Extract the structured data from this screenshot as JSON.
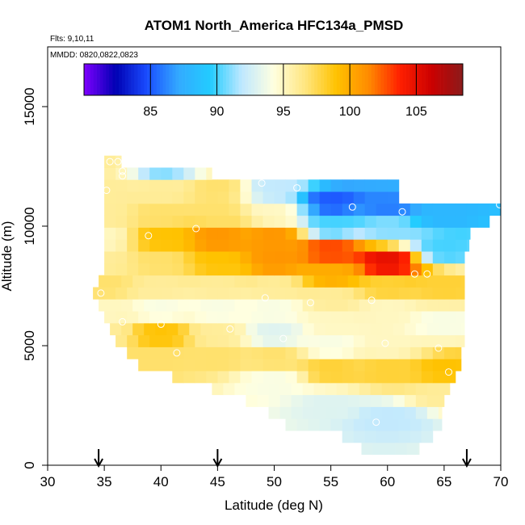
{
  "chart_data": {
    "type": "heatmap",
    "title": "ATOM1 North_America HFC134a_PMSD",
    "flights_label": "Flts: 9,10,11",
    "dates_label": "MMDD: 0820,0822,0823",
    "xlabel": "Latitude (deg N)",
    "ylabel": "Altitude (m)",
    "xlim": [
      30,
      70
    ],
    "ylim": [
      0,
      17500
    ],
    "x_ticks": [
      30,
      35,
      40,
      45,
      50,
      55,
      60,
      65,
      70
    ],
    "y_ticks": [
      0,
      5000,
      10000,
      15000
    ],
    "x_tick_labels": [
      "30",
      "35",
      "40",
      "45",
      "50",
      "55",
      "60",
      "65",
      "70"
    ],
    "y_tick_labels": [
      "0",
      "5000",
      "10000",
      "15000"
    ],
    "colorbar": {
      "range": [
        80,
        108.5
      ],
      "ticks": [
        85,
        90,
        95,
        100,
        105
      ],
      "tick_labels": [
        "85",
        "90",
        "95",
        "100",
        "105"
      ],
      "colors": [
        "#7f00ff",
        "#0000b3",
        "#1a4dff",
        "#33aaff",
        "#22ccff",
        "#bfe8ff",
        "#ffffe0",
        "#ffe680",
        "#ffc200",
        "#ff8c00",
        "#ff2000",
        "#cc0000",
        "#8b1a1a"
      ]
    },
    "arrows_at_latitude": [
      34.5,
      45,
      67
    ],
    "grid": false,
    "cells": [
      [
        35,
        12.6,
        96
      ],
      [
        35,
        11.5,
        96
      ],
      [
        35,
        10.5,
        96
      ],
      [
        35,
        9.5,
        95
      ],
      [
        35,
        8.5,
        96
      ],
      [
        35,
        7.5,
        97
      ],
      [
        35,
        6.5,
        95
      ],
      [
        35,
        5.5,
        96
      ],
      [
        40,
        12.6,
        90
      ],
      [
        40,
        11.5,
        96
      ],
      [
        40,
        10.5,
        97
      ],
      [
        40,
        9.5,
        99
      ],
      [
        40,
        8.5,
        97
      ],
      [
        40,
        7.5,
        96
      ],
      [
        40,
        6.5,
        94
      ],
      [
        40,
        5.5,
        99
      ],
      [
        40,
        4.5,
        97
      ],
      [
        45,
        11.5,
        97
      ],
      [
        45,
        10.5,
        97
      ],
      [
        45,
        9.5,
        101
      ],
      [
        45,
        8.5,
        99
      ],
      [
        45,
        7.5,
        96
      ],
      [
        45,
        6.5,
        94
      ],
      [
        45,
        5.5,
        96
      ],
      [
        45,
        4.5,
        97
      ],
      [
        50,
        11.5,
        92
      ],
      [
        50,
        10.5,
        95
      ],
      [
        50,
        9.5,
        101
      ],
      [
        50,
        8.5,
        101
      ],
      [
        50,
        7.5,
        96
      ],
      [
        50,
        6.5,
        94
      ],
      [
        50,
        5.5,
        93
      ],
      [
        50,
        4.5,
        97
      ],
      [
        50,
        3.5,
        94
      ],
      [
        55,
        11.0,
        85
      ],
      [
        55,
        10.0,
        90
      ],
      [
        55,
        9.0,
        103
      ],
      [
        55,
        8.0,
        100
      ],
      [
        55,
        7.0,
        96
      ],
      [
        55,
        6.0,
        95
      ],
      [
        55,
        5.0,
        94
      ],
      [
        55,
        4.0,
        98
      ],
      [
        55,
        2.5,
        93
      ],
      [
        60,
        10.8,
        86
      ],
      [
        60,
        10.0,
        91
      ],
      [
        60,
        8.5,
        105
      ],
      [
        60,
        7.5,
        98
      ],
      [
        60,
        6.5,
        95
      ],
      [
        60,
        5.0,
        95
      ],
      [
        60,
        4.0,
        98
      ],
      [
        60,
        2.0,
        92
      ],
      [
        65,
        10.5,
        88
      ],
      [
        65,
        9.0,
        90
      ],
      [
        65,
        7.5,
        98
      ],
      [
        65,
        6.0,
        94
      ],
      [
        65,
        4.0,
        99
      ],
      [
        65,
        3.0,
        96
      ]
    ]
  }
}
